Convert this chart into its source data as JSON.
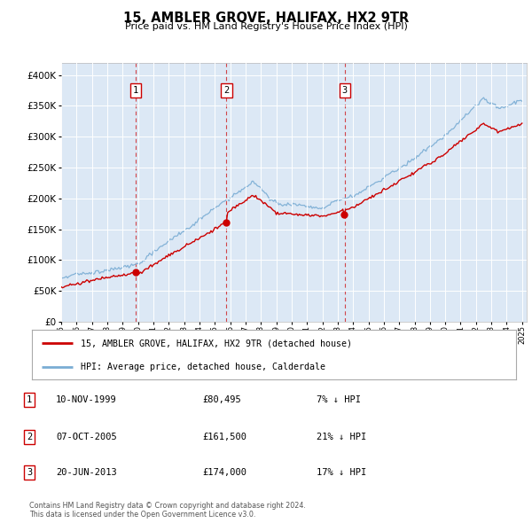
{
  "title": "15, AMBLER GROVE, HALIFAX, HX2 9TR",
  "subtitle": "Price paid vs. HM Land Registry's House Price Index (HPI)",
  "ylim": [
    0,
    420000
  ],
  "yticks": [
    0,
    50000,
    100000,
    150000,
    200000,
    250000,
    300000,
    350000,
    400000
  ],
  "sale_prices": [
    80495,
    161500,
    174000
  ],
  "sale_years_float": [
    1999.8611,
    2005.75,
    2013.4583
  ],
  "sale_labels": [
    "1",
    "2",
    "3"
  ],
  "plot_bg_color": "#dce8f5",
  "hpi_color": "#7aadd4",
  "price_color": "#cc0000",
  "dashed_color": "#cc0000",
  "legend_label_red": "15, AMBLER GROVE, HALIFAX, HX2 9TR (detached house)",
  "legend_label_blue": "HPI: Average price, detached house, Calderdale",
  "footnote": "Contains HM Land Registry data © Crown copyright and database right 2024.\nThis data is licensed under the Open Government Licence v3.0.",
  "table_rows": [
    [
      "1",
      "10-NOV-1999",
      "£80,495",
      "7% ↓ HPI"
    ],
    [
      "2",
      "07-OCT-2005",
      "£161,500",
      "21% ↓ HPI"
    ],
    [
      "3",
      "20-JUN-2013",
      "£174,000",
      "17% ↓ HPI"
    ]
  ],
  "xstart_year": 1995,
  "xend_year": 2025
}
